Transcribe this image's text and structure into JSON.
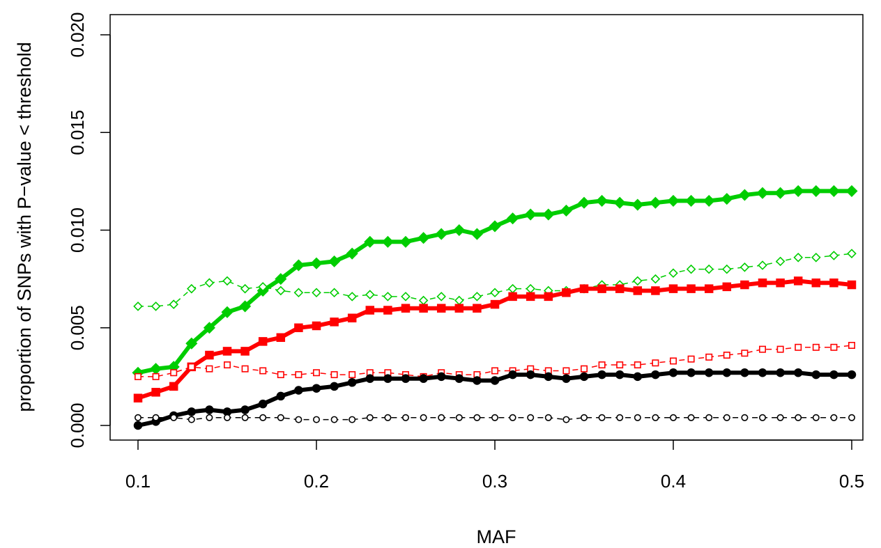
{
  "chart_data": {
    "type": "line",
    "title": "",
    "xlabel": "MAF",
    "ylabel": "proportion of SNPs with P−value < threshold",
    "xlim": [
      0.1,
      0.5
    ],
    "ylim": [
      0.0,
      0.02
    ],
    "x_ticks": [
      0.1,
      0.2,
      0.3,
      0.4,
      0.5
    ],
    "y_ticks": [
      0.0,
      0.005,
      0.01,
      0.015,
      0.02
    ],
    "x_tick_labels": [
      "0.1",
      "0.2",
      "0.3",
      "0.4",
      "0.5"
    ],
    "y_tick_labels": [
      "0.000",
      "0.005",
      "0.010",
      "0.015",
      "0.020"
    ],
    "grid": false,
    "legend": "none",
    "x": [
      0.1,
      0.11,
      0.12,
      0.13,
      0.14,
      0.15,
      0.16,
      0.17,
      0.18,
      0.19,
      0.2,
      0.21,
      0.22,
      0.23,
      0.24,
      0.25,
      0.26,
      0.27,
      0.28,
      0.29,
      0.3,
      0.31,
      0.32,
      0.33,
      0.34,
      0.35,
      0.36,
      0.37,
      0.38,
      0.39,
      0.4,
      0.41,
      0.42,
      0.43,
      0.44,
      0.45,
      0.46,
      0.47,
      0.48,
      0.49,
      0.5
    ],
    "series": [
      {
        "color": "#00CD00",
        "line": "solid",
        "marker": "diamond",
        "values": [
          0.0027,
          0.0029,
          0.003,
          0.0042,
          0.005,
          0.0058,
          0.0061,
          0.0069,
          0.0075,
          0.0082,
          0.0083,
          0.0084,
          0.0088,
          0.0094,
          0.0094,
          0.0094,
          0.0096,
          0.0098,
          0.01,
          0.0098,
          0.0102,
          0.0106,
          0.0108,
          0.0108,
          0.011,
          0.0114,
          0.0115,
          0.0114,
          0.0113,
          0.0114,
          0.0115,
          0.0115,
          0.0115,
          0.0116,
          0.0118,
          0.0119,
          0.0119,
          0.012,
          0.012,
          0.012,
          0.012
        ]
      },
      {
        "color": "#00CD00",
        "line": "dashed",
        "marker": "diamond-open",
        "values": [
          0.0061,
          0.0061,
          0.0062,
          0.007,
          0.0073,
          0.0074,
          0.007,
          0.0071,
          0.0069,
          0.0068,
          0.0068,
          0.0068,
          0.0066,
          0.0067,
          0.0066,
          0.0066,
          0.0064,
          0.0066,
          0.0064,
          0.0066,
          0.0068,
          0.007,
          0.007,
          0.0069,
          0.0069,
          0.007,
          0.0072,
          0.0072,
          0.0074,
          0.0075,
          0.0078,
          0.008,
          0.008,
          0.008,
          0.0081,
          0.0082,
          0.0084,
          0.0086,
          0.0086,
          0.0087,
          0.0088
        ]
      },
      {
        "color": "#FF0000",
        "line": "solid",
        "marker": "square",
        "values": [
          0.0014,
          0.0017,
          0.002,
          0.003,
          0.0036,
          0.0038,
          0.0038,
          0.0043,
          0.0045,
          0.005,
          0.0051,
          0.0053,
          0.0055,
          0.0059,
          0.0059,
          0.006,
          0.006,
          0.006,
          0.006,
          0.006,
          0.0062,
          0.0066,
          0.0066,
          0.0066,
          0.0068,
          0.007,
          0.007,
          0.007,
          0.0069,
          0.0069,
          0.007,
          0.007,
          0.007,
          0.0071,
          0.0072,
          0.0073,
          0.0073,
          0.0074,
          0.0073,
          0.0073,
          0.0072
        ]
      },
      {
        "color": "#FF0000",
        "line": "dashed",
        "marker": "square-open",
        "values": [
          0.0025,
          0.0025,
          0.0027,
          0.003,
          0.0029,
          0.0031,
          0.0029,
          0.0028,
          0.0026,
          0.0026,
          0.0027,
          0.0026,
          0.0026,
          0.0027,
          0.0027,
          0.0026,
          0.0025,
          0.0027,
          0.0026,
          0.0026,
          0.0028,
          0.0028,
          0.0029,
          0.0028,
          0.0028,
          0.0029,
          0.0031,
          0.0031,
          0.0031,
          0.0032,
          0.0033,
          0.0034,
          0.0035,
          0.0036,
          0.0037,
          0.0039,
          0.0039,
          0.004,
          0.004,
          0.004,
          0.0041
        ]
      },
      {
        "color": "#000000",
        "line": "solid",
        "marker": "circle",
        "values": [
          0.0,
          0.0002,
          0.0005,
          0.0007,
          0.0008,
          0.0007,
          0.0008,
          0.0011,
          0.0015,
          0.0018,
          0.0019,
          0.002,
          0.0022,
          0.0024,
          0.0024,
          0.0024,
          0.0024,
          0.0025,
          0.0024,
          0.0023,
          0.0023,
          0.0026,
          0.0026,
          0.0025,
          0.0024,
          0.0025,
          0.0026,
          0.0026,
          0.0025,
          0.0026,
          0.0027,
          0.0027,
          0.0027,
          0.0027,
          0.0027,
          0.0027,
          0.0027,
          0.0027,
          0.0026,
          0.0026,
          0.0026
        ]
      },
      {
        "color": "#000000",
        "line": "dashed",
        "marker": "circle-open",
        "values": [
          0.0004,
          0.0004,
          0.0004,
          0.0003,
          0.0004,
          0.0004,
          0.0004,
          0.0004,
          0.0004,
          0.0003,
          0.0003,
          0.0003,
          0.0003,
          0.0004,
          0.0004,
          0.0004,
          0.0004,
          0.0004,
          0.0004,
          0.0004,
          0.0004,
          0.0004,
          0.0004,
          0.0004,
          0.0003,
          0.0004,
          0.0004,
          0.0004,
          0.0004,
          0.0004,
          0.0004,
          0.0004,
          0.0004,
          0.0004,
          0.0004,
          0.0004,
          0.0004,
          0.0004,
          0.0004,
          0.0004,
          0.0004
        ]
      }
    ]
  }
}
